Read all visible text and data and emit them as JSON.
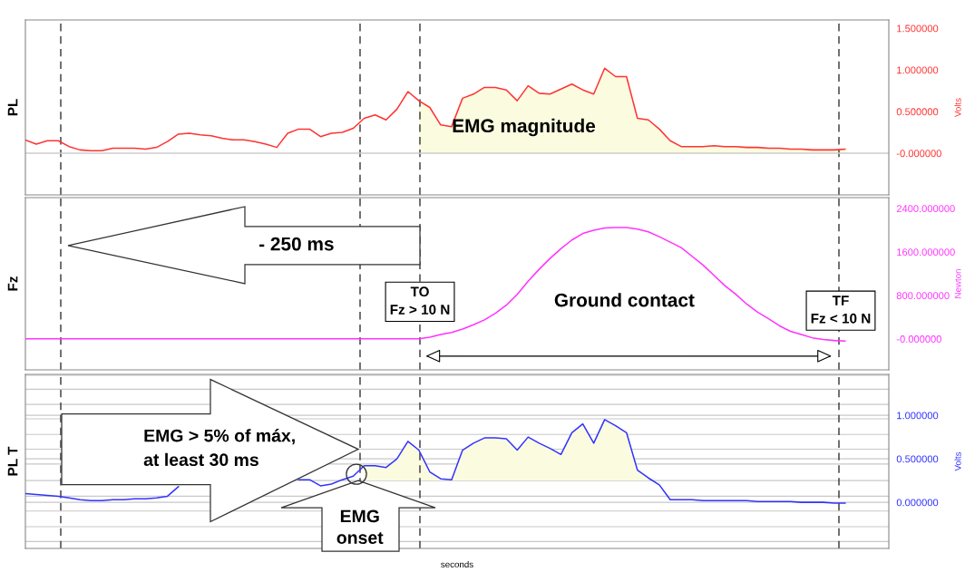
{
  "chart_data": [
    {
      "type": "line",
      "ylabel": "PL",
      "tick_labels": "y",
      "grid": false,
      "legend": false,
      "marker": "none",
      "line_style": "solid",
      "categories": [
        null,
        null,
        null,
        null,
        null,
        null,
        null,
        null,
        null,
        null,
        null,
        null,
        null,
        null,
        null,
        null,
        null,
        null,
        null,
        null,
        null,
        null,
        null,
        null,
        null,
        null,
        null,
        null,
        null,
        null,
        null,
        null,
        null,
        null,
        null,
        null,
        null,
        null,
        null,
        null,
        null,
        null,
        null,
        null,
        null,
        null,
        null,
        null,
        null,
        null,
        null,
        null,
        null,
        null,
        null,
        null,
        null,
        null,
        null,
        null,
        null,
        null,
        null,
        null,
        null,
        null,
        null,
        null,
        null,
        null,
        null,
        null,
        null,
        null,
        null,
        null,
        null,
        null,
        null,
        null
      ],
      "series": [
        {
          "color": "#ff3333",
          "values": [
            0.16,
            0.11,
            0.15,
            0.15,
            0.08,
            0.04,
            0.03,
            0.03,
            0.06,
            0.06,
            0.06,
            0.05,
            0.07,
            0.14,
            0.23,
            0.24,
            0.22,
            0.21,
            0.18,
            0.16,
            0.16,
            0.14,
            0.11,
            0.07,
            0.24,
            0.29,
            0.29,
            0.2,
            0.24,
            0.25,
            0.3,
            0.42,
            0.46,
            0.4,
            0.53,
            0.74,
            0.63,
            0.55,
            0.34,
            0.32,
            0.66,
            0.71,
            0.79,
            0.79,
            0.76,
            0.63,
            0.81,
            0.72,
            0.71,
            0.77,
            0.83,
            0.76,
            0.71,
            1.02,
            0.92,
            0.92,
            0.42,
            0.4,
            0.29,
            0.15,
            0.08,
            0.08,
            0.08,
            0.09,
            0.08,
            0.08,
            0.07,
            0.07,
            0.06,
            0.06,
            0.05,
            0.05,
            0.04,
            0.04,
            0.04,
            0.05,
            null,
            null,
            null,
            null
          ],
          "lower": [
            null,
            null,
            null,
            null,
            null,
            null,
            null,
            null,
            null,
            null,
            null,
            null,
            null,
            null,
            null,
            null,
            null,
            null,
            null,
            null,
            null,
            null,
            null,
            null,
            null,
            null,
            null,
            null,
            null,
            null,
            null,
            null,
            null,
            null,
            null,
            null,
            0,
            0,
            0,
            0,
            0,
            0,
            0,
            0,
            0,
            0,
            0,
            0,
            0,
            0,
            0,
            0,
            0,
            0,
            0,
            0,
            0,
            0,
            0,
            0,
            0,
            0,
            0,
            0,
            0,
            0,
            0,
            0,
            0,
            0,
            0,
            0,
            0,
            0,
            0,
            0,
            null,
            null,
            null,
            null
          ],
          "upper": [
            null,
            null,
            null,
            null,
            null,
            null,
            null,
            null,
            null,
            null,
            null,
            null,
            null,
            null,
            null,
            null,
            null,
            null,
            null,
            null,
            null,
            null,
            null,
            null,
            null,
            null,
            null,
            null,
            null,
            null,
            null,
            null,
            null,
            null,
            null,
            null,
            0.63,
            0.55,
            0.34,
            0.32,
            0.66,
            0.71,
            0.79,
            0.79,
            0.76,
            0.63,
            0.81,
            0.72,
            0.71,
            0.77,
            0.83,
            0.76,
            0.71,
            1.02,
            0.92,
            0.92,
            0.42,
            0.4,
            0.29,
            0.15,
            0.08,
            0.08,
            0.08,
            0.09,
            0.08,
            0.08,
            0.07,
            0.07,
            0.06,
            0.06,
            0.05,
            0.05,
            0.04,
            0.04,
            0.04,
            0.05,
            null,
            null,
            null,
            null
          ]
        }
      ],
      "ylim": [
        -0.5,
        1.6
      ],
      "yticks": [
        {
          "value": 0,
          "label": "-0.000000"
        },
        {
          "value": 0.5,
          "label": "0.500000"
        },
        {
          "value": 1,
          "label": "1.000000"
        },
        {
          "value": 1.5,
          "label": "1.500000"
        }
      ],
      "ref_lines": [
        {
          "axis": "y",
          "value": 0,
          "color": "#cccccc",
          "line_style": "solid"
        }
      ],
      "annotations": [
        "EMG magnitude",
        "Volts"
      ]
    },
    {
      "type": "line",
      "ylabel": "Fz",
      "tick_labels": "y",
      "grid": false,
      "legend": false,
      "marker": "none",
      "line_style": "solid",
      "categories": [
        null,
        null,
        null,
        null,
        null,
        null,
        null,
        null,
        null,
        null,
        null,
        null,
        null,
        null,
        null,
        null,
        null,
        null,
        null,
        null,
        null,
        null,
        null,
        null,
        null,
        null,
        null,
        null,
        null,
        null,
        null,
        null,
        null,
        null,
        null,
        null,
        null,
        null,
        null,
        null,
        null,
        null,
        null,
        null,
        null,
        null,
        null,
        null,
        null,
        null,
        null,
        null,
        null,
        null,
        null,
        null,
        null,
        null,
        null,
        null,
        null,
        null,
        null,
        null,
        null,
        null,
        null,
        null,
        null,
        null,
        null,
        null,
        null,
        null,
        null,
        null,
        null,
        null,
        null,
        null
      ],
      "series": [
        {
          "color": "#ff33ff",
          "values": [
            0,
            0,
            0,
            0,
            0,
            0,
            0,
            0,
            0,
            0,
            0,
            0,
            0,
            0,
            0,
            0,
            0,
            0,
            0,
            0,
            0,
            0,
            0,
            0,
            0,
            0,
            0,
            0,
            0,
            0,
            0,
            0,
            0,
            0,
            0,
            0,
            0,
            30,
            80,
            120,
            180,
            260,
            350,
            470,
            620,
            820,
            1060,
            1280,
            1480,
            1660,
            1820,
            1940,
            2000,
            2040,
            2050,
            2050,
            2020,
            1970,
            1880,
            1780,
            1680,
            1520,
            1360,
            1170,
            980,
            820,
            640,
            490,
            370,
            240,
            140,
            80,
            20,
            -10,
            -30,
            -40,
            null,
            null,
            null,
            null
          ]
        }
      ],
      "ylim": [
        -570,
        2600
      ],
      "yticks": [
        {
          "value": 0,
          "label": "-0.000000"
        },
        {
          "value": 800,
          "label": "800.000000"
        },
        {
          "value": 1600,
          "label": "1600.000000"
        },
        {
          "value": 2400,
          "label": "2400.000000"
        }
      ],
      "annotations": [
        "- 250 ms",
        "TO\nFz > 10 N",
        "Ground contact",
        "TF\nFz < 10 N",
        "Newton"
      ]
    },
    {
      "type": "line",
      "ylabel": "PL T",
      "xlabel": "seconds",
      "tick_labels": "y",
      "grid": "y",
      "legend": false,
      "marker": "none",
      "line_style": "solid",
      "categories": [
        null,
        null,
        null,
        null,
        null,
        null,
        null,
        null,
        null,
        null,
        null,
        null,
        null,
        null,
        null,
        null,
        null,
        null,
        null,
        null,
        null,
        null,
        null,
        null,
        null,
        null,
        null,
        null,
        null,
        null,
        null,
        null,
        null,
        null,
        null,
        null,
        null,
        null,
        null,
        null,
        null,
        null,
        null,
        null,
        null,
        null,
        null,
        null,
        null,
        null,
        null,
        null,
        null,
        null,
        null,
        null,
        null,
        null,
        null,
        null,
        null,
        null,
        null,
        null,
        null,
        null,
        null,
        null,
        null,
        null,
        null,
        null,
        null,
        null,
        null,
        null,
        null,
        null,
        null,
        null
      ],
      "series": [
        {
          "color": "#3333ff",
          "values": [
            0.1,
            0.09,
            0.08,
            0.07,
            0.05,
            0.03,
            0.02,
            0.02,
            0.03,
            0.03,
            0.04,
            0.04,
            0.05,
            0.07,
            0.18,
            null,
            null,
            null,
            null,
            null,
            null,
            null,
            null,
            null,
            null,
            0.26,
            0.26,
            0.19,
            0.21,
            0.26,
            0.3,
            0.42,
            0.42,
            0.4,
            0.5,
            0.7,
            0.6,
            0.35,
            0.27,
            0.26,
            0.6,
            0.68,
            0.74,
            0.74,
            0.73,
            0.6,
            0.75,
            0.68,
            0.62,
            0.55,
            0.8,
            0.9,
            0.68,
            0.95,
            0.88,
            0.8,
            0.37,
            0.28,
            0.2,
            0.03,
            0.03,
            0.03,
            0.02,
            0.02,
            0.02,
            0.02,
            0.02,
            0.01,
            0.01,
            0.01,
            0.01,
            0.0,
            0.0,
            0.0,
            -0.01,
            -0.01,
            null,
            null,
            null,
            null
          ],
          "lower": [
            null,
            null,
            null,
            null,
            null,
            null,
            null,
            null,
            null,
            null,
            null,
            null,
            null,
            null,
            null,
            null,
            null,
            null,
            null,
            null,
            null,
            null,
            null,
            null,
            null,
            null,
            null,
            null,
            null,
            null,
            null,
            0.25,
            0.25,
            0.25,
            0.25,
            0.25,
            0.25,
            0.25,
            0.25,
            0.25,
            0.25,
            0.25,
            0.25,
            0.25,
            0.25,
            0.25,
            0.25,
            0.25,
            0.25,
            0.25,
            0.25,
            0.25,
            0.25,
            0.25,
            0.25,
            0.25,
            0.25,
            0.25,
            null,
            null,
            null,
            null,
            null,
            null,
            null,
            null,
            null,
            null,
            null,
            null,
            null,
            null,
            null,
            null,
            null,
            null,
            null,
            null,
            null,
            null
          ],
          "upper": [
            null,
            null,
            null,
            null,
            null,
            null,
            null,
            null,
            null,
            null,
            null,
            null,
            null,
            null,
            null,
            null,
            null,
            null,
            null,
            null,
            null,
            null,
            null,
            null,
            null,
            null,
            null,
            null,
            null,
            null,
            null,
            0.42,
            0.42,
            0.4,
            0.5,
            0.7,
            0.6,
            0.35,
            0.27,
            0.26,
            0.6,
            0.68,
            0.74,
            0.74,
            0.73,
            0.6,
            0.75,
            0.68,
            0.62,
            0.55,
            0.8,
            0.9,
            0.68,
            0.95,
            0.88,
            0.8,
            0.37,
            0.28,
            null,
            null,
            null,
            null,
            null,
            null,
            null,
            null,
            null,
            null,
            null,
            null,
            null,
            null,
            null,
            null,
            null,
            null,
            null,
            null,
            null,
            null
          ]
        }
      ],
      "ylim": [
        -0.53,
        1.47
      ],
      "yticks": [
        {
          "value": -0.45,
          "label": null
        },
        {
          "value": -0.28,
          "label": null
        },
        {
          "value": -0.1,
          "label": null
        },
        {
          "value": 0,
          "label": "0.000000"
        },
        {
          "value": 0.07,
          "label": null
        },
        {
          "value": 0.25,
          "label": null
        },
        {
          "value": 0.44,
          "label": null
        },
        {
          "value": 0.5,
          "label": "0.500000"
        },
        {
          "value": 0.61,
          "label": null
        },
        {
          "value": 0.78,
          "label": null
        },
        {
          "value": 0.96,
          "label": null
        },
        {
          "value": 1,
          "label": "1.000000"
        },
        {
          "value": 1.125,
          "label": null
        },
        {
          "value": 1.3,
          "label": null
        },
        {
          "value": 1.46,
          "label": null
        }
      ],
      "annotations": [
        "EMG > 5% of máx,\nat least 30 ms",
        "EMG\nonset",
        "Volts"
      ]
    }
  ]
}
